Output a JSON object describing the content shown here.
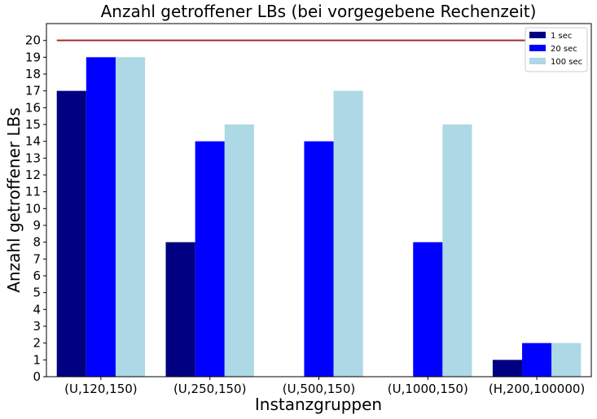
{
  "chart_data": {
    "type": "bar",
    "title": "Anzahl getroffener LBs (bei vorgegebene Rechenzeit)",
    "xlabel": "Instanzgruppen",
    "ylabel": "Anzahl getroffener LBs",
    "categories": [
      "(U,120,150)",
      "(U,250,150)",
      "(U,500,150)",
      "(U,1000,150)",
      "(H,200,100000)"
    ],
    "series": [
      {
        "name": "1 sec",
        "color": "#000080",
        "values": [
          17,
          8,
          0,
          0,
          1
        ]
      },
      {
        "name": "20 sec",
        "color": "#0000ff",
        "values": [
          19,
          14,
          14,
          8,
          2
        ]
      },
      {
        "name": "100 sec",
        "color": "#add8e6",
        "values": [
          19,
          15,
          17,
          15,
          2
        ]
      }
    ],
    "reference_line": {
      "y": 20,
      "color": "#a52a2a"
    },
    "ylim": [
      0,
      21
    ],
    "yticks": [
      0,
      1,
      2,
      3,
      4,
      5,
      6,
      7,
      8,
      9,
      10,
      11,
      12,
      13,
      14,
      15,
      16,
      17,
      18,
      19,
      20
    ],
    "legend_position": "top-right",
    "grid": false
  }
}
